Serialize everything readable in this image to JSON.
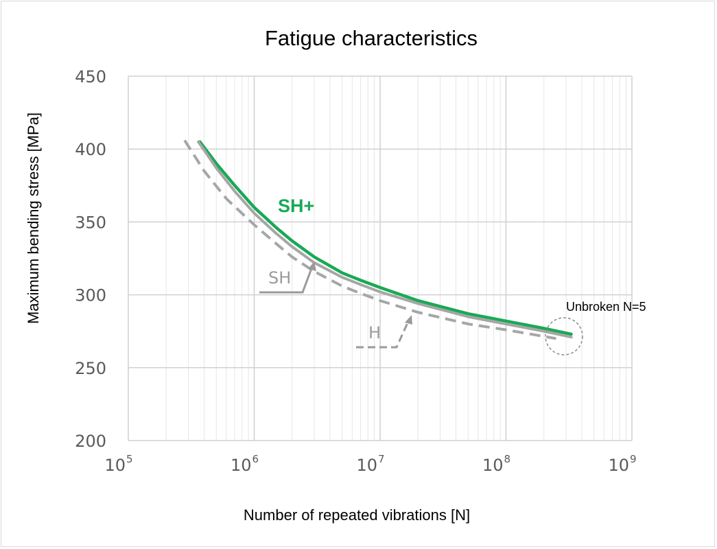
{
  "chart_data": {
    "type": "line",
    "title": "Fatigue characteristics",
    "xlabel": "Number of repeated vibrations [N]",
    "ylabel": "Maximum bending stress [MPa]",
    "x_scale": "log",
    "xlim": [
      100000,
      1000000000
    ],
    "ylim": [
      200,
      450
    ],
    "y_ticks": [
      "450",
      "400",
      "350",
      "300",
      "250",
      "200"
    ],
    "x_ticks": [
      {
        "value": 100000,
        "base": "10",
        "exp": "5"
      },
      {
        "value": 1000000,
        "base": "10",
        "exp": "6"
      },
      {
        "value": 10000000,
        "base": "10",
        "exp": "7"
      },
      {
        "value": 100000000,
        "base": "10",
        "exp": "8"
      },
      {
        "value": 1000000000,
        "base": "10",
        "exp": "9"
      }
    ],
    "grid": true,
    "series": [
      {
        "name": "SH+",
        "color": "#19a955",
        "style": "solid",
        "x": [
          370000,
          500000,
          700000,
          1000000,
          1500000,
          2000000,
          3000000,
          5000000,
          7000000,
          10000000,
          20000000,
          50000000,
          100000000,
          200000000,
          330000000
        ],
        "y": [
          405,
          390,
          375,
          360,
          346,
          337,
          326,
          315,
          310,
          305,
          296,
          287,
          282,
          277,
          273
        ]
      },
      {
        "name": "SH",
        "color": "#a6a6a6",
        "style": "solid",
        "x": [
          360000,
          500000,
          700000,
          1000000,
          1500000,
          2000000,
          3000000,
          5000000,
          7000000,
          10000000,
          20000000,
          50000000,
          100000000,
          200000000,
          330000000
        ],
        "y": [
          405,
          387,
          371,
          356,
          342,
          333,
          322,
          312,
          307,
          302,
          294,
          285,
          280,
          275,
          271
        ]
      },
      {
        "name": "H",
        "color": "#a6a6a6",
        "style": "dashed",
        "x": [
          280000,
          400000,
          600000,
          1000000,
          1500000,
          2000000,
          3000000,
          5000000,
          7000000,
          10000000,
          20000000,
          50000000,
          100000000,
          250000000
        ],
        "y": [
          406,
          385,
          366,
          348,
          335,
          326,
          316,
          306,
          301,
          296,
          288,
          280,
          276,
          270
        ]
      }
    ],
    "annotations": [
      {
        "text": "SH+"
      },
      {
        "text": "SH"
      },
      {
        "text": "H"
      },
      {
        "text": "Unbroken N=5"
      }
    ]
  }
}
